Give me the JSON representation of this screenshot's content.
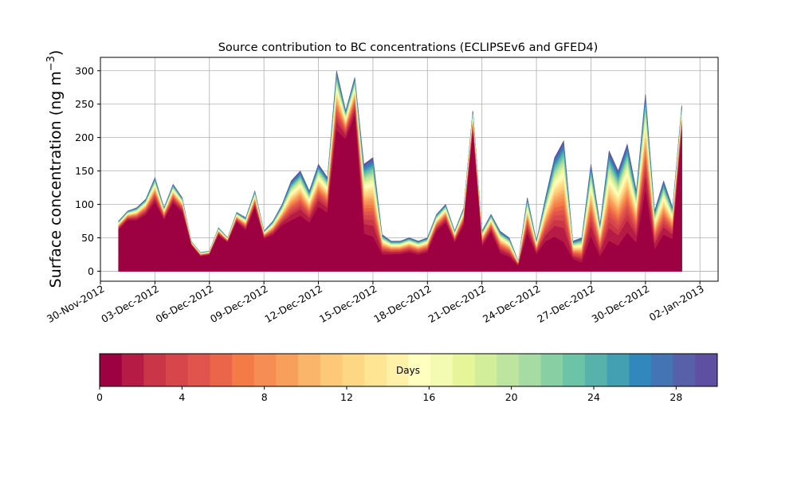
{
  "chart_data": {
    "type": "area",
    "title": "Source contribution to BC concentrations (ECLIPSEv6 and GFED4)",
    "ylabel": "Surface concentration (ng m",
    "ylabel_sup": "−3",
    "ylabel_close": ")",
    "xlabel": "",
    "ylim": [
      -15,
      320
    ],
    "xlim": [
      "2012-11-30",
      "2013-01-03"
    ],
    "y_ticks": [
      0,
      50,
      100,
      150,
      200,
      250,
      300
    ],
    "x_ticks": [
      "30-Nov-2012",
      "03-Dec-2012",
      "06-Dec-2012",
      "09-Dec-2012",
      "12-Dec-2012",
      "15-Dec-2012",
      "18-Dec-2012",
      "21-Dec-2012",
      "24-Dec-2012",
      "27-Dec-2012",
      "30-Dec-2012",
      "02-Jan-2013"
    ],
    "x_tick_dates": [
      "2012-11-30",
      "2012-12-03",
      "2012-12-06",
      "2012-12-09",
      "2012-12-12",
      "2012-12-15",
      "2012-12-18",
      "2012-12-21",
      "2012-12-24",
      "2012-12-27",
      "2012-12-30",
      "2013-01-02"
    ],
    "grid": true,
    "series_note_dates": [],
    "dates": [
      "2012-12-01",
      "2012-12-01",
      "2012-12-02",
      "2012-12-02",
      "2012-12-03",
      "2012-12-03",
      "2012-12-04",
      "2012-12-04",
      "2012-12-05",
      "2012-12-05",
      "2012-12-06",
      "2012-12-06",
      "2012-12-07",
      "2012-12-07",
      "2012-12-08",
      "2012-12-08",
      "2012-12-09",
      "2012-12-09",
      "2012-12-10",
      "2012-12-10",
      "2012-12-11",
      "2012-12-11",
      "2012-12-12",
      "2012-12-12",
      "2012-12-13",
      "2012-12-13",
      "2012-12-14",
      "2012-12-14",
      "2012-12-15",
      "2012-12-15",
      "2012-12-16",
      "2012-12-16",
      "2012-12-17",
      "2012-12-17",
      "2012-12-18",
      "2012-12-18",
      "2012-12-19",
      "2012-12-19",
      "2012-12-20",
      "2012-12-20",
      "2012-12-21",
      "2012-12-21",
      "2012-12-22",
      "2012-12-22",
      "2012-12-23",
      "2012-12-23",
      "2012-12-24",
      "2012-12-24",
      "2012-12-25",
      "2012-12-25",
      "2012-12-26",
      "2012-12-26",
      "2012-12-27",
      "2012-12-27",
      "2012-12-28",
      "2012-12-28",
      "2012-12-29",
      "2012-12-29",
      "2012-12-30",
      "2012-12-30",
      "2012-12-31",
      "2012-12-31",
      "2013-01-01"
    ],
    "hours": [
      0,
      12,
      0,
      12,
      0,
      12,
      0,
      12,
      0,
      12,
      0,
      12,
      0,
      12,
      0,
      12,
      0,
      12,
      0,
      12,
      0,
      12,
      0,
      12,
      0,
      12,
      0,
      12,
      0,
      12,
      0,
      12,
      0,
      12,
      0,
      12,
      0,
      12,
      0,
      12,
      0,
      12,
      0,
      12,
      0,
      12,
      0,
      12,
      0,
      12,
      0,
      12,
      0,
      12,
      0,
      12,
      0,
      12,
      0,
      12,
      0,
      12,
      0
    ],
    "total": [
      75,
      90,
      95,
      108,
      140,
      95,
      130,
      110,
      45,
      28,
      30,
      65,
      50,
      88,
      80,
      120,
      60,
      75,
      100,
      135,
      150,
      120,
      160,
      140,
      300,
      240,
      290,
      160,
      170,
      55,
      45,
      45,
      50,
      45,
      50,
      85,
      100,
      60,
      95,
      240,
      60,
      85,
      60,
      50,
      15,
      110,
      45,
      110,
      170,
      195,
      45,
      50,
      160,
      70,
      180,
      150,
      190,
      120,
      265,
      90,
      135,
      95,
      248
    ],
    "base_share": [
      0.82,
      0.84,
      0.8,
      0.78,
      0.73,
      0.8,
      0.78,
      0.8,
      0.85,
      0.78,
      0.8,
      0.82,
      0.85,
      0.83,
      0.76,
      0.78,
      0.8,
      0.72,
      0.68,
      0.56,
      0.55,
      0.6,
      0.6,
      0.62,
      0.7,
      0.82,
      0.8,
      0.35,
      0.3,
      0.45,
      0.55,
      0.56,
      0.56,
      0.54,
      0.56,
      0.7,
      0.72,
      0.7,
      0.72,
      0.85,
      0.6,
      0.68,
      0.45,
      0.42,
      0.5,
      0.5,
      0.55,
      0.4,
      0.3,
      0.22,
      0.4,
      0.25,
      0.32,
      0.3,
      0.25,
      0.25,
      0.3,
      0.35,
      0.45,
      0.35,
      0.4,
      0.5,
      0.82
    ],
    "colorbar": {
      "label": "Days",
      "min": 0,
      "max": 30,
      "ticks": [
        0,
        4,
        8,
        12,
        16,
        20,
        24,
        28
      ],
      "colors": [
        "#9e0142",
        "#b51b45",
        "#cb3548",
        "#d7464a",
        "#e0544d",
        "#ea6549",
        "#f47a46",
        "#f68d55",
        "#f99f5c",
        "#fbb56a",
        "#fdc877",
        "#fed784",
        "#fee594",
        "#fff2a8",
        "#ffffbf",
        "#f3fab1",
        "#e6f598",
        "#d3ee9b",
        "#bee5a0",
        "#a6dba4",
        "#88cfa4",
        "#6bc4a5",
        "#57b2ab",
        "#439fb2",
        "#3288bd",
        "#4474b3",
        "#5860aa",
        "#5e4fa2"
      ]
    }
  }
}
